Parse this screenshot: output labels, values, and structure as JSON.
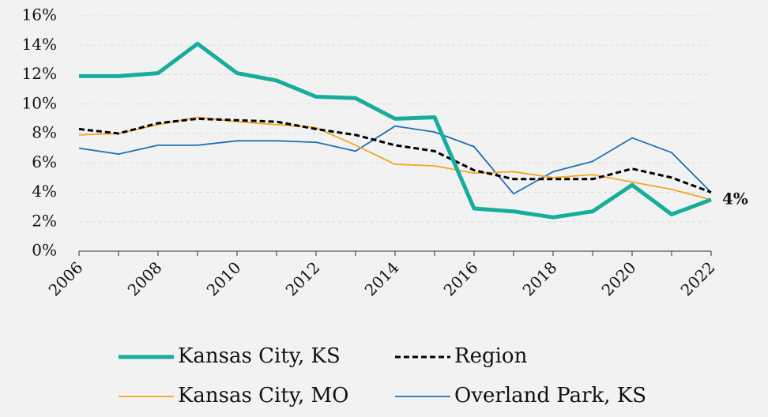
{
  "chart_data": {
    "type": "line",
    "x": [
      2006,
      2007,
      2008,
      2009,
      2010,
      2011,
      2012,
      2013,
      2014,
      2015,
      2016,
      2017,
      2018,
      2019,
      2020,
      2021,
      2022
    ],
    "xlim": [
      2006,
      2022
    ],
    "xticks": [
      2006,
      2008,
      2010,
      2012,
      2014,
      2016,
      2018,
      2020,
      2022
    ],
    "ylim": [
      0,
      16
    ],
    "yticks": [
      {
        "value": 0,
        "label": "0%"
      },
      {
        "value": 2,
        "label": "2%"
      },
      {
        "value": 4,
        "label": "4%"
      },
      {
        "value": 6,
        "label": "6%"
      },
      {
        "value": 8,
        "label": "8%"
      },
      {
        "value": 10,
        "label": "10%"
      },
      {
        "value": 12,
        "label": "12%"
      },
      {
        "value": 14,
        "label": "14%"
      },
      {
        "value": 16,
        "label": "16%"
      }
    ],
    "grid": true,
    "legend": "bottom",
    "series": [
      {
        "name": "Kansas City, KS",
        "color": "#17ad9b",
        "linewidth": 5,
        "dashed": false,
        "values": [
          11.9,
          11.9,
          12.1,
          14.1,
          12.1,
          11.6,
          10.5,
          10.4,
          9.0,
          9.1,
          2.9,
          2.7,
          2.3,
          2.7,
          4.5,
          2.5,
          3.5
        ],
        "value_labels": [
          null,
          null,
          null,
          null,
          null,
          null,
          null,
          null,
          null,
          null,
          null,
          null,
          null,
          null,
          null,
          null,
          "4%"
        ]
      },
      {
        "name": "Region",
        "color": "#000000",
        "linewidth": 3,
        "dashed": true,
        "values": [
          8.3,
          8.0,
          8.7,
          9.0,
          8.9,
          8.8,
          8.3,
          7.9,
          7.2,
          6.8,
          5.5,
          4.9,
          4.9,
          4.9,
          5.6,
          5.0,
          4.0
        ]
      },
      {
        "name": "Kansas City, MO",
        "color": "#f5a623",
        "linewidth": 1.8,
        "dashed": false,
        "values": [
          7.9,
          8.0,
          8.6,
          9.1,
          8.8,
          8.6,
          8.4,
          7.2,
          5.9,
          5.8,
          5.3,
          5.4,
          5.0,
          5.2,
          4.7,
          4.2,
          3.5
        ]
      },
      {
        "name": "Overland Park, KS",
        "color": "#2070b8",
        "linewidth": 1.8,
        "dashed": false,
        "values": [
          7.0,
          6.6,
          7.2,
          7.2,
          7.5,
          7.5,
          7.4,
          6.8,
          8.5,
          8.1,
          7.1,
          3.9,
          5.4,
          6.1,
          7.7,
          6.7,
          4.0
        ]
      }
    ]
  }
}
